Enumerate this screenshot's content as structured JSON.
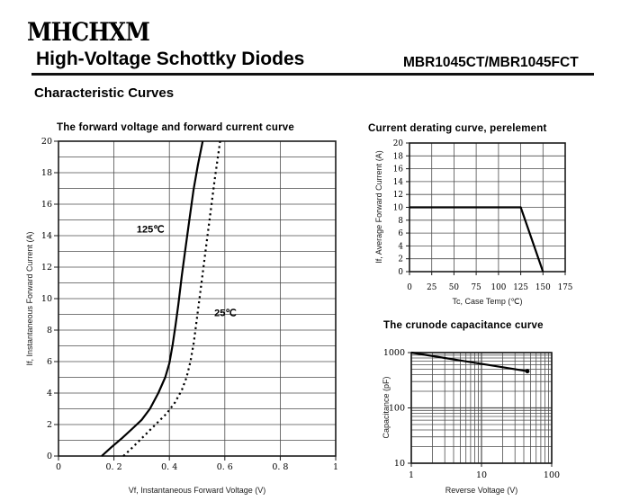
{
  "header": {
    "logo": "MHCHXM",
    "title": "High-Voltage Schottky Diodes",
    "part": "MBR1045CT/MBR1045FCT",
    "section": "Characteristic Curves"
  },
  "colors": {
    "ink": "#000000",
    "grid": "#4d4d4d",
    "frame": "#1a1a1a",
    "curve": "#000000",
    "background": "#ffffff"
  },
  "chart_data": [
    {
      "id": "forward",
      "type": "line",
      "title": "The forward voltage and forward current curve",
      "xlabel": "Vf, Instantaneous Forward Voltage (V)",
      "ylabel": "If, Instantaneous Forward Current (A)",
      "xlim": [
        0,
        1
      ],
      "ylim": [
        0,
        20
      ],
      "x_grid_step": 0.2,
      "y_grid_step": 1,
      "x_ticks": [
        0,
        0.2,
        0.4,
        0.6,
        0.8,
        1
      ],
      "x_tick_labels": [
        "0",
        "0. 2",
        "0. 4",
        "0. 6",
        "0. 8",
        "1"
      ],
      "y_ticks": [
        0,
        2,
        4,
        6,
        8,
        10,
        12,
        14,
        16,
        18,
        20
      ],
      "y_tick_labels": [
        "0",
        "2",
        "4",
        "6",
        "8",
        "10",
        "12",
        "14",
        "16",
        "18",
        "20"
      ],
      "series": [
        {
          "name": "125℃",
          "style": "solid",
          "points": [
            [
              0.156,
              0
            ],
            [
              0.19,
              0.55
            ],
            [
              0.23,
              1.15
            ],
            [
              0.27,
              1.8
            ],
            [
              0.3,
              2.3
            ],
            [
              0.33,
              3.0
            ],
            [
              0.36,
              4.0
            ],
            [
              0.385,
              5.0
            ],
            [
              0.4,
              5.9
            ],
            [
              0.412,
              7.1
            ],
            [
              0.422,
              8.3
            ],
            [
              0.432,
              9.6
            ],
            [
              0.445,
              11.5
            ],
            [
              0.458,
              13.2
            ],
            [
              0.472,
              15.0
            ],
            [
              0.487,
              16.9
            ],
            [
              0.503,
              18.5
            ],
            [
              0.52,
              20
            ]
          ]
        },
        {
          "name": "25℃",
          "style": "dashed",
          "points": [
            [
              0.234,
              0
            ],
            [
              0.27,
              0.6
            ],
            [
              0.31,
              1.3
            ],
            [
              0.35,
              2.0
            ],
            [
              0.39,
              2.7
            ],
            [
              0.42,
              3.4
            ],
            [
              0.445,
              4.2
            ],
            [
              0.462,
              5.0
            ],
            [
              0.476,
              6.0
            ],
            [
              0.488,
              7.2
            ],
            [
              0.499,
              8.7
            ],
            [
              0.51,
              10.2
            ],
            [
              0.523,
              12.0
            ],
            [
              0.536,
              13.8
            ],
            [
              0.55,
              15.7
            ],
            [
              0.563,
              17.5
            ],
            [
              0.575,
              19.0
            ],
            [
              0.583,
              20
            ]
          ]
        }
      ],
      "annotations": [
        {
          "text": "125℃",
          "x": 0.282,
          "y": 14.2
        },
        {
          "text": "25℃",
          "x": 0.562,
          "y": 8.9
        }
      ]
    },
    {
      "id": "derating",
      "type": "line",
      "title": "Current derating curve, perelement",
      "xlabel": "Tc, Case Temp (℃)",
      "ylabel": "If, Average Forward Current (A)",
      "xlim": [
        0,
        175
      ],
      "ylim": [
        0,
        20
      ],
      "x_grid_step": 25,
      "y_grid_step": 2,
      "x_ticks": [
        0,
        25,
        50,
        75,
        100,
        125,
        150,
        175
      ],
      "x_tick_labels": [
        "0",
        "25",
        "50",
        "75",
        "100",
        "125",
        "150",
        "175"
      ],
      "y_ticks": [
        0,
        2,
        4,
        6,
        8,
        10,
        12,
        14,
        16,
        18,
        20
      ],
      "y_tick_labels": [
        "0",
        "2",
        "4",
        "6",
        "8",
        "10",
        "12",
        "14",
        "16",
        "18",
        "20"
      ],
      "series": [
        {
          "name": "derating",
          "style": "solid",
          "points": [
            [
              0,
              10
            ],
            [
              125,
              10
            ],
            [
              150,
              0
            ]
          ]
        }
      ],
      "annotations": []
    },
    {
      "id": "capacitance",
      "type": "line",
      "title": "The crunode capacitance curve",
      "xlabel": "Reverse Voltage (V)",
      "ylabel": "Capacitance (pF)",
      "xscale": "log",
      "yscale": "log",
      "xlim": [
        1,
        100
      ],
      "ylim": [
        10,
        1000
      ],
      "x_ticks": [
        1,
        10,
        100
      ],
      "x_tick_labels": [
        "1",
        "10",
        "100"
      ],
      "y_ticks": [
        10,
        100,
        1000
      ],
      "y_tick_labels": [
        "10",
        "100",
        "1000"
      ],
      "series": [
        {
          "name": "capacitance",
          "style": "solid",
          "end_dot": true,
          "points": [
            [
              1,
              1000
            ],
            [
              45,
              460
            ]
          ]
        }
      ],
      "annotations": []
    }
  ]
}
